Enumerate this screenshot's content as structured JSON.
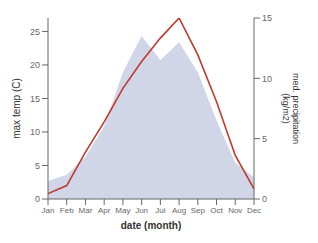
{
  "chart_data": {
    "type": "line",
    "xlabel": "date (month)",
    "ylabel": "max temp (C)",
    "y2label": "med. precipitation\n(kg/m2)",
    "categories": [
      "Jan",
      "Feb",
      "Mar",
      "Apr",
      "May",
      "Jun",
      "Jul",
      "Aug",
      "Sep",
      "Oct",
      "Nov",
      "Dec"
    ],
    "series": [
      {
        "type": "area",
        "axis": "y2",
        "color": "#aab4d4",
        "values": [
          1.5,
          2.0,
          3.5,
          6.0,
          10.5,
          13.5,
          11.5,
          13.0,
          10.5,
          6.5,
          3.0,
          1.8
        ]
      },
      {
        "type": "line",
        "color": "#c0392b",
        "values": [
          0.8,
          2.0,
          7.0,
          11.5,
          16.5,
          20.5,
          24.0,
          27.0,
          21.5,
          14.5,
          6.5,
          1.5
        ]
      }
    ],
    "ylim": [
      0,
      27
    ],
    "yticks": [
      0,
      5,
      10,
      15,
      20,
      25
    ],
    "y2lim": [
      0,
      15
    ],
    "y2ticks": [
      0,
      5,
      10,
      15
    ],
    "grid": false
  }
}
